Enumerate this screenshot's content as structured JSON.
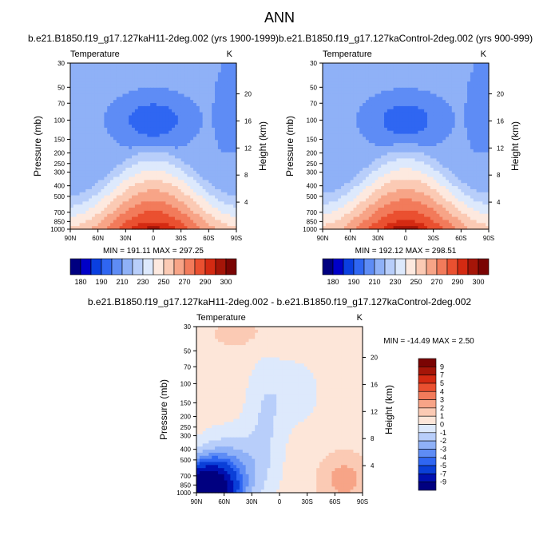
{
  "figure": {
    "title": "ANN",
    "colors": {
      "abs_scale": [
        "#000080",
        "#0000c8",
        "#0a3fe0",
        "#2f66f2",
        "#5e8cf5",
        "#8fb1f7",
        "#b8cefa",
        "#dde9fc",
        "#fde9df",
        "#fbcab4",
        "#f7a487",
        "#f27b5b",
        "#ea5030",
        "#d42a12",
        "#a51508",
        "#7a0403"
      ],
      "diff_scale": [
        "#000080",
        "#0010b0",
        "#0a3fd8",
        "#2f66f2",
        "#5e8cf5",
        "#8fb1f7",
        "#b8cefa",
        "#dde9fc",
        "#fde6d9",
        "#fbcab4",
        "#f7a487",
        "#f27b5b",
        "#ea5030",
        "#d42a12",
        "#a51508",
        "#7a0403"
      ]
    }
  },
  "chart_data": [
    {
      "type": "heatmap",
      "title": "b.e21.B1850.f19_g17.127kaH11-2deg.002 (yrs 1900-1999)",
      "left_label": "Temperature",
      "right_label": "K",
      "xlabel": "",
      "ylabel": "Pressure (mb)",
      "ylabel_right": "Height (km)",
      "x_ticks": [
        "90N",
        "60N",
        "30N",
        "0",
        "30S",
        "60S",
        "90S"
      ],
      "x_range": [
        90,
        -90
      ],
      "y_ticks": [
        "30",
        "50",
        "70",
        "100",
        "150",
        "200",
        "250",
        "300",
        "400",
        "500",
        "700",
        "850",
        "1000"
      ],
      "y_range_mb": [
        30,
        1000
      ],
      "y_scale": "log",
      "right_ticks": [
        "20",
        "16",
        "12",
        "8",
        "4"
      ],
      "min_max_text": "MIN = 191.11   MAX = 297.25",
      "levels": [
        180,
        185,
        190,
        200,
        210,
        220,
        230,
        240,
        250,
        260,
        270,
        280,
        290,
        295,
        300
      ],
      "colorbar_labels": [
        "180",
        "190",
        "210",
        "230",
        "250",
        "270",
        "290",
        "300"
      ],
      "field": {
        "surface_equator_K": 297.25,
        "surface_pole_K": 252,
        "upper_tropical_minimum_K": 191.11,
        "upper_level_K": 215
      }
    },
    {
      "type": "heatmap",
      "title": "b.e21.B1850.f19_g17.127kaControl-2deg.002 (yrs 900-999)",
      "left_label": "Temperature",
      "right_label": "K",
      "xlabel": "",
      "ylabel": "Pressure (mb)",
      "ylabel_right": "Height (km)",
      "x_ticks": [
        "90N",
        "60N",
        "30N",
        "0",
        "30S",
        "60S",
        "90S"
      ],
      "x_range": [
        90,
        -90
      ],
      "y_ticks": [
        "30",
        "50",
        "70",
        "100",
        "150",
        "200",
        "250",
        "300",
        "400",
        "500",
        "700",
        "850",
        "1000"
      ],
      "y_range_mb": [
        30,
        1000
      ],
      "y_scale": "log",
      "right_ticks": [
        "20",
        "16",
        "12",
        "8",
        "4"
      ],
      "min_max_text": "MIN = 192.12   MAX = 298.51",
      "levels": [
        180,
        185,
        190,
        200,
        210,
        220,
        230,
        240,
        250,
        260,
        270,
        280,
        290,
        295,
        300
      ],
      "colorbar_labels": [
        "180",
        "190",
        "210",
        "230",
        "250",
        "270",
        "290",
        "300"
      ],
      "field": {
        "surface_equator_K": 298.51,
        "surface_pole_K": 254,
        "upper_tropical_minimum_K": 192.12,
        "upper_level_K": 215
      }
    },
    {
      "type": "heatmap",
      "title": "b.e21.B1850.f19_g17.127kaH11-2deg.002 - b.e21.B1850.f19_g17.127kaControl-2deg.002",
      "left_label": "Temperature",
      "right_label": "K",
      "xlabel": "",
      "ylabel": "Pressure (mb)",
      "ylabel_right": "Height (km)",
      "x_ticks": [
        "90N",
        "60N",
        "30N",
        "0",
        "30S",
        "60S",
        "90S"
      ],
      "x_range": [
        90,
        -90
      ],
      "y_ticks": [
        "30",
        "50",
        "70",
        "100",
        "150",
        "200",
        "250",
        "300",
        "400",
        "500",
        "700",
        "850",
        "1000"
      ],
      "y_range_mb": [
        30,
        1000
      ],
      "y_scale": "log",
      "right_ticks": [
        "20",
        "16",
        "12",
        "8",
        "4"
      ],
      "min_max_text": "MIN = -14.49  MAX =   2.50",
      "levels": [
        -9,
        -7,
        -5,
        -4,
        -3,
        -2,
        -1,
        0,
        1,
        2,
        3,
        4,
        5,
        7,
        9
      ],
      "colorbar_labels": [
        "9",
        "7",
        "5",
        "4",
        "3",
        "2",
        "1",
        "0",
        "-1",
        "-2",
        "-3",
        "-4",
        "-5",
        "-7",
        "-9"
      ],
      "field": {
        "min_K": -14.49,
        "max_K": 2.5,
        "strongest_cooling": "lower troposphere 50N-90N",
        "warming": "southern hemisphere lower troposphere and upper levels"
      }
    }
  ]
}
